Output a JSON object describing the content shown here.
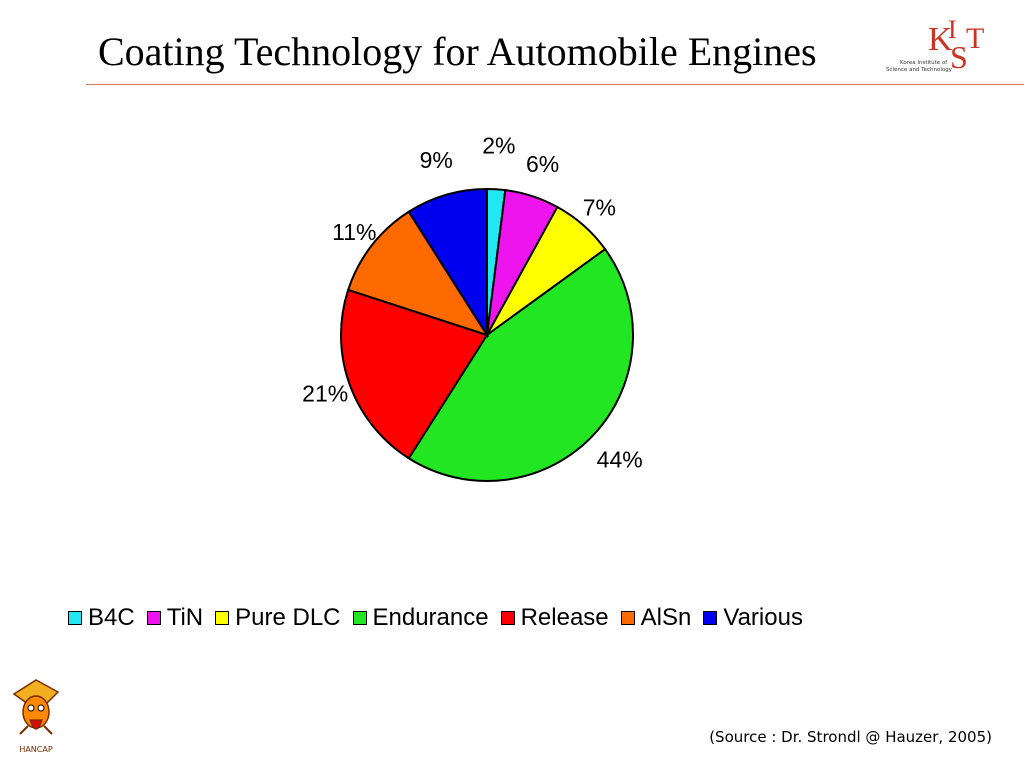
{
  "slide": {
    "title": "Coating Technology for Automobile Engines",
    "source": "(Source : Dr. Strondl @ Hauzer, 2005)"
  },
  "logo": {
    "letters": "KIST",
    "text_line1": "Korea Institute of",
    "text_line2": "Science and Technology",
    "accent_color": "#cc3322"
  },
  "mascot": {
    "caption": "HANCAP"
  },
  "chart_data": {
    "type": "pie",
    "categories": [
      "B4C",
      "TiN",
      "Pure DLC",
      "Endurance",
      "Release",
      "AlSn",
      "Various"
    ],
    "values": [
      2,
      6,
      7,
      44,
      21,
      11,
      9
    ],
    "labels": [
      "2%",
      "6%",
      "7%",
      "44%",
      "21%",
      "11%",
      "9%"
    ],
    "colors": [
      "#22e6f2",
      "#ee14ee",
      "#ffff00",
      "#22e622",
      "#ff0000",
      "#ff6a00",
      "#0000ee"
    ],
    "legend_position": "bottom",
    "start": "12 o'clock",
    "direction": "clockwise"
  }
}
